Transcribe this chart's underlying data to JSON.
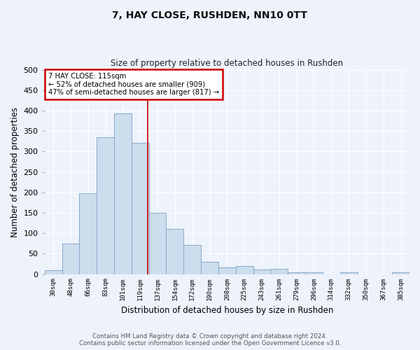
{
  "title": "7, HAY CLOSE, RUSHDEN, NN10 0TT",
  "subtitle": "Size of property relative to detached houses in Rushden",
  "xlabel": "Distribution of detached houses by size in Rushden",
  "ylabel": "Number of detached properties",
  "categories": [
    "30sqm",
    "48sqm",
    "66sqm",
    "83sqm",
    "101sqm",
    "119sqm",
    "137sqm",
    "154sqm",
    "172sqm",
    "190sqm",
    "208sqm",
    "225sqm",
    "243sqm",
    "261sqm",
    "279sqm",
    "296sqm",
    "314sqm",
    "332sqm",
    "350sqm",
    "367sqm",
    "385sqm"
  ],
  "values": [
    9,
    75,
    198,
    335,
    393,
    322,
    150,
    110,
    72,
    30,
    17,
    20,
    11,
    13,
    5,
    4,
    0,
    5,
    0,
    0,
    4
  ],
  "bar_color": "#ccdded",
  "bar_edge_color": "#88aacc",
  "background_color": "#eef2fb",
  "grid_color": "#ffffff",
  "annotation_text_line1": "7 HAY CLOSE: 115sqm",
  "annotation_text_line2": "← 52% of detached houses are smaller (909)",
  "annotation_text_line3": "47% of semi-detached houses are larger (817) →",
  "annotation_box_color": "#ffffff",
  "annotation_border_color": "#cc0000",
  "vline_color": "#cc0000",
  "vline_x_index": 5.45,
  "ylim": [
    0,
    500
  ],
  "yticks": [
    0,
    50,
    100,
    150,
    200,
    250,
    300,
    350,
    400,
    450,
    500
  ],
  "footer_line1": "Contains HM Land Registry data © Crown copyright and database right 2024.",
  "footer_line2": "Contains public sector information licensed under the Open Government Licence v3.0."
}
